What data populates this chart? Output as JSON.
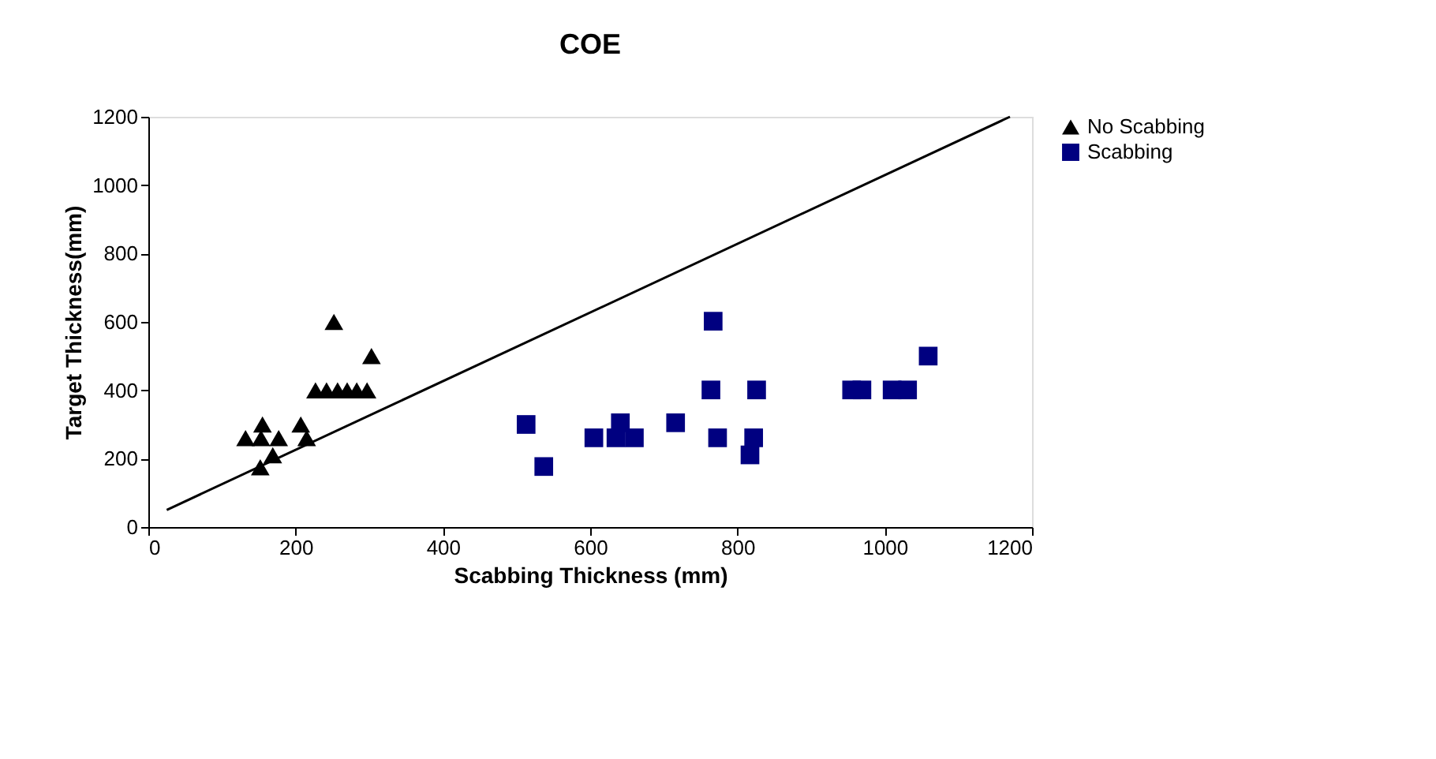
{
  "chart_data": {
    "type": "scatter",
    "title": "COE",
    "xlabel": "Scabbing Thickness (mm)",
    "ylabel": "Target Thickness(mm)",
    "xlim": [
      0,
      1200
    ],
    "xticks": [
      0,
      200,
      400,
      600,
      800,
      1000,
      1200
    ],
    "ylim": [
      0,
      1200
    ],
    "yticks": [
      0,
      200,
      400,
      600,
      800,
      1000,
      1200
    ],
    "grid": false,
    "legend": "right",
    "series": [
      {
        "name": "No Scabbing",
        "color": "#000000",
        "marker": "triangle",
        "x": [
          252,
          303,
          227,
          242,
          257,
          270,
          283,
          297,
          155,
          132,
          153,
          177,
          207,
          215,
          169,
          152
        ],
        "values": [
          600,
          500,
          400,
          400,
          400,
          400,
          400,
          400,
          300,
          260,
          260,
          260,
          300,
          260,
          210,
          175
        ]
      },
      {
        "name": "Scabbing",
        "color": "#000080",
        "marker": "square",
        "x": [
          513,
          537,
          605,
          641,
          635,
          660,
          716,
          767,
          764,
          773,
          826,
          822,
          817,
          955,
          969,
          1010,
          1031,
          1059
        ],
        "values": [
          300,
          177,
          261,
          305,
          261,
          261,
          305,
          602,
          401,
          261,
          401,
          261,
          211,
          401,
          401,
          401,
          401,
          500
        ]
      },
      {
        "type": "line",
        "color": "#000000",
        "x": [
          25,
          1170
        ],
        "values": [
          50,
          1200
        ]
      }
    ]
  }
}
